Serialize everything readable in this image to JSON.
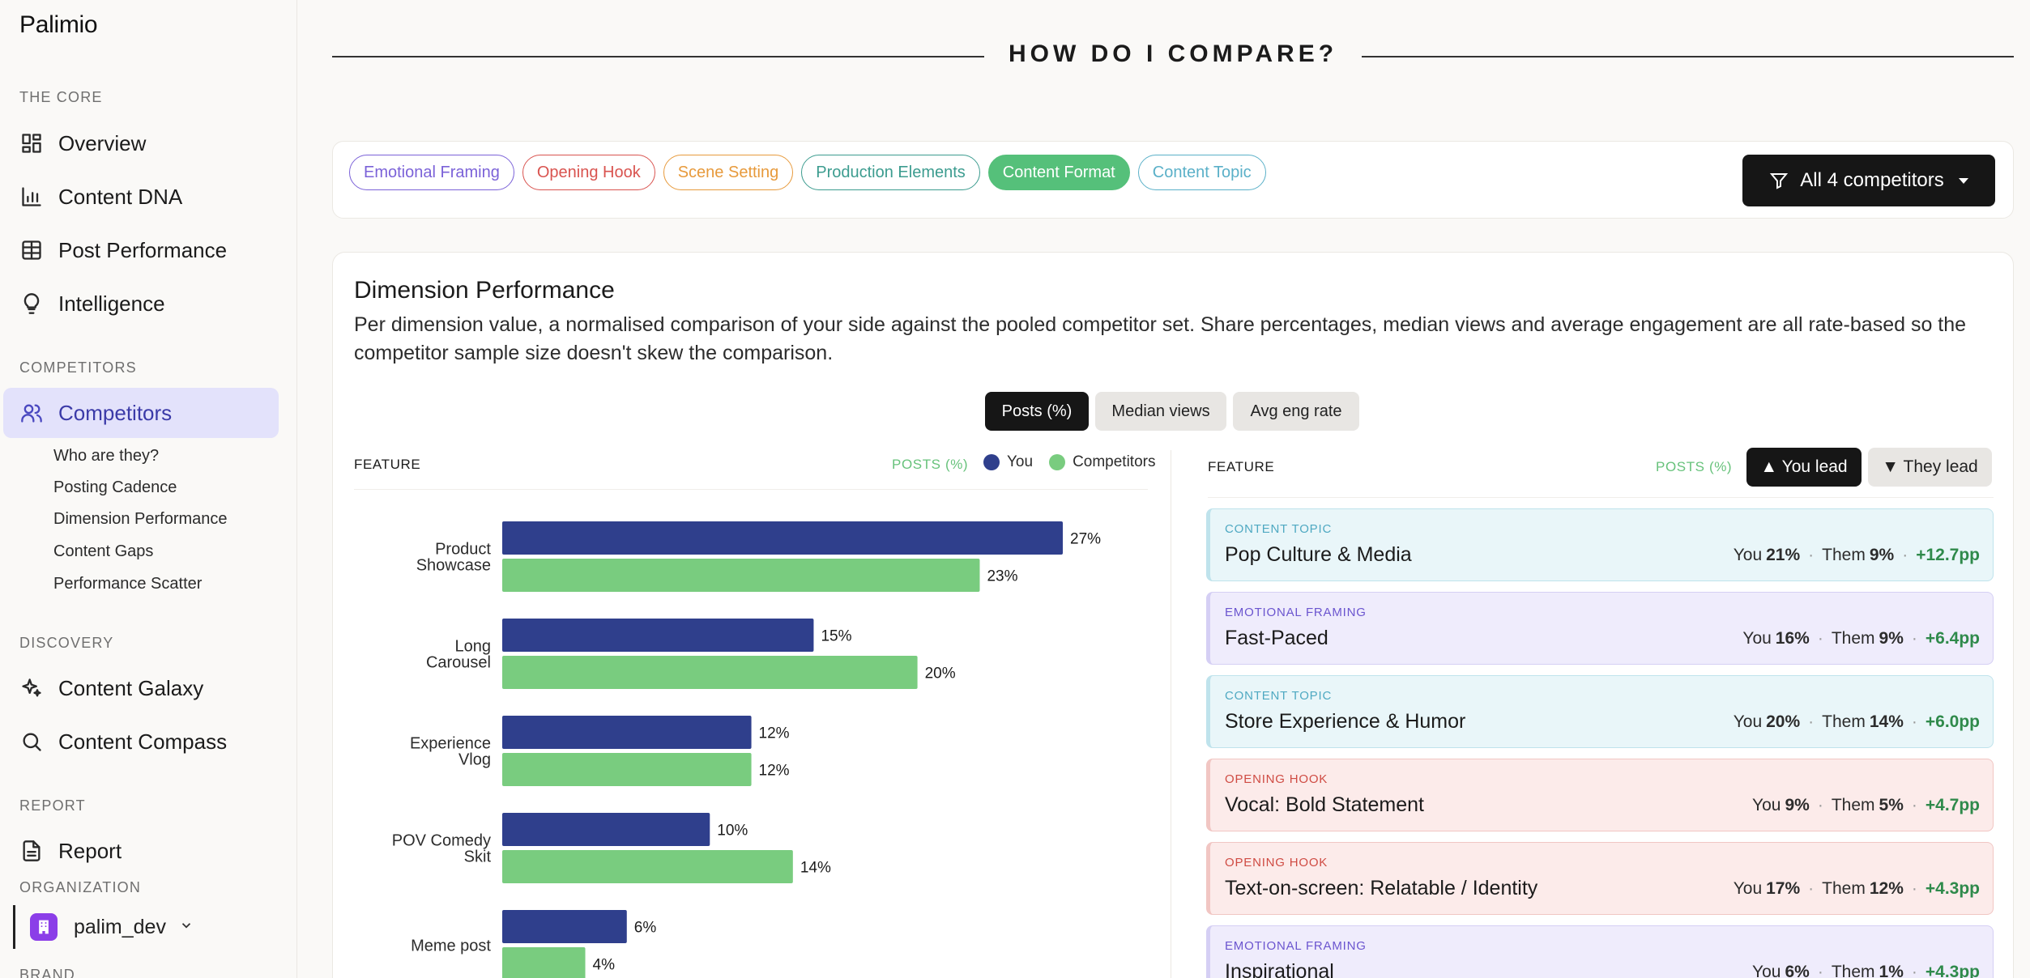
{
  "app": {
    "name": "Palimio"
  },
  "sidebar": {
    "sections": {
      "core": "THE CORE",
      "competitors": "COMPETITORS",
      "discovery": "DISCOVERY",
      "report": "REPORT",
      "organization": "ORGANIZATION",
      "brand": "BRAND"
    },
    "items": {
      "overview": {
        "label": "Overview",
        "icon": "dashboard-icon"
      },
      "content_dna": {
        "label": "Content DNA",
        "icon": "bar-chart-icon"
      },
      "post_performance": {
        "label": "Post Performance",
        "icon": "table-icon"
      },
      "intelligence": {
        "label": "Intelligence",
        "icon": "lightbulb-icon"
      },
      "competitors": {
        "label": "Competitors",
        "icon": "users-icon"
      },
      "content_galaxy": {
        "label": "Content Galaxy",
        "icon": "sparkles-icon"
      },
      "content_compass": {
        "label": "Content Compass",
        "icon": "search-icon"
      },
      "report": {
        "label": "Report",
        "icon": "document-icon"
      }
    },
    "competitor_sub": [
      "Who are they?",
      "Posting Cadence",
      "Dimension Performance",
      "Content Gaps",
      "Performance Scatter"
    ],
    "org": {
      "name": "palim_dev"
    }
  },
  "page": {
    "title": "HOW DO I COMPARE?"
  },
  "filters": {
    "chips": [
      {
        "label": "Emotional Framing",
        "color": "#7b62d8",
        "active": false
      },
      {
        "label": "Opening Hook",
        "color": "#d9534f",
        "active": false
      },
      {
        "label": "Scene Setting",
        "color": "#e79a3c",
        "active": false
      },
      {
        "label": "Production Elements",
        "color": "#3c9c8f",
        "active": false
      },
      {
        "label": "Content Format",
        "color": "#55c07a",
        "active": true
      },
      {
        "label": "Content Topic",
        "color": "#5ab0c8",
        "active": false
      }
    ],
    "competitors_button": "All 4 competitors"
  },
  "card": {
    "title": "Dimension Performance",
    "description": "Per dimension value, a normalised comparison of your side against the pooled competitor set. Share percentages, median views and average engagement are all rate-based so the competitor sample size doesn't skew the comparison.",
    "toggles": [
      "Posts (%)",
      "Median views",
      "Avg eng rate"
    ],
    "left": {
      "feature_head": "FEATURE",
      "metric": "POSTS (%)"
    },
    "legend": {
      "you": "You",
      "competitors": "Competitors"
    },
    "right": {
      "feature_head": "FEATURE",
      "metric": "POSTS (%)",
      "you_lead": "▲ You lead",
      "they_lead": "▼ They lead"
    }
  },
  "colors": {
    "you": "#2f3f8c",
    "competitors": "#79cc7f"
  },
  "chart_data": {
    "type": "bar",
    "orientation": "horizontal",
    "categories": [
      [
        "Product",
        "Showcase"
      ],
      [
        "Long",
        "Carousel"
      ],
      [
        "Experience",
        "Vlog"
      ],
      [
        "POV Comedy",
        "Skit"
      ],
      [
        "Meme post"
      ]
    ],
    "series": [
      {
        "name": "You",
        "values": [
          27,
          15,
          12,
          10,
          6
        ]
      },
      {
        "name": "Competitors",
        "values": [
          23,
          20,
          12,
          14,
          4
        ]
      }
    ],
    "unit": "%",
    "xlim": [
      0,
      27
    ]
  },
  "gaps": [
    {
      "category": "CONTENT TOPIC",
      "name": "Pop Culture & Media",
      "you": "21%",
      "them": "9%",
      "delta": "+12.7pp",
      "theme": "topic"
    },
    {
      "category": "EMOTIONAL FRAMING",
      "name": "Fast-Paced",
      "you": "16%",
      "them": "9%",
      "delta": "+6.4pp",
      "theme": "emotional"
    },
    {
      "category": "CONTENT TOPIC",
      "name": "Store Experience & Humor",
      "you": "20%",
      "them": "14%",
      "delta": "+6.0pp",
      "theme": "topic"
    },
    {
      "category": "OPENING HOOK",
      "name": "Vocal: Bold Statement",
      "you": "9%",
      "them": "5%",
      "delta": "+4.7pp",
      "theme": "hook"
    },
    {
      "category": "OPENING HOOK",
      "name": "Text-on-screen: Relatable / Identity",
      "you": "17%",
      "them": "12%",
      "delta": "+4.3pp",
      "theme": "hook"
    },
    {
      "category": "EMOTIONAL FRAMING",
      "name": "Inspirational",
      "you": "6%",
      "them": "1%",
      "delta": "+4.3pp",
      "theme": "emotional"
    }
  ],
  "gap_labels": {
    "you": "You",
    "them": "Them"
  },
  "gap_themes": {
    "topic": {
      "bg": "#e9f6f9",
      "border": "#bfe3ec",
      "accent": "#4fa9c2"
    },
    "emotional": {
      "bg": "#efecfc",
      "border": "#d5cff4",
      "accent": "#6b55cf"
    },
    "hook": {
      "bg": "#fcebea",
      "border": "#f1c6c3",
      "accent": "#cf4b43"
    }
  }
}
